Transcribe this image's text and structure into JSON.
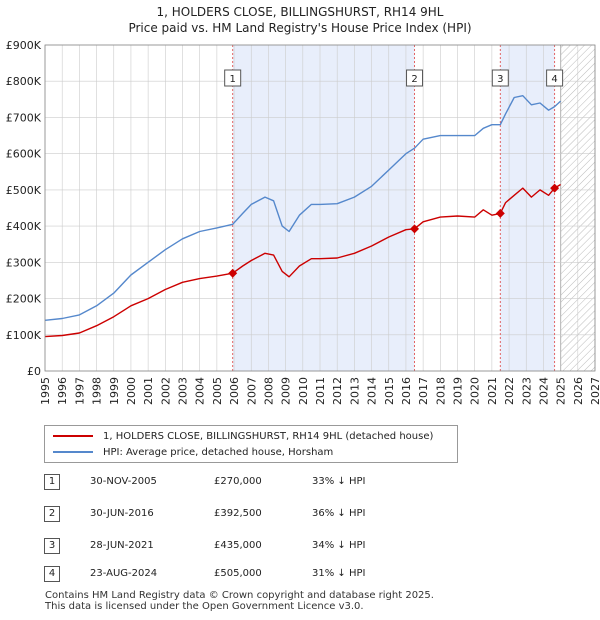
{
  "chart": {
    "title_line1": "1, HOLDERS CLOSE, BILLINGSHURST, RH14 9HL",
    "title_line2": "Price paid vs. HM Land Registry's House Price Index (HPI)"
  },
  "colors": {
    "property": "#cc0000",
    "hpi": "#5588cc",
    "shade": "#e8eefb",
    "marker_line": "#e05555",
    "grid": "#cccccc"
  },
  "legend": {
    "property_label": "1, HOLDERS CLOSE, BILLINGSHURST, RH14 9HL (detached house)",
    "hpi_label": "HPI: Average price, detached house, Horsham"
  },
  "sales": [
    {
      "id": "1",
      "date": "30-NOV-2005",
      "price": "£270,000",
      "hpi": "33% ↓ HPI"
    },
    {
      "id": "2",
      "date": "30-JUN-2016",
      "price": "£392,500",
      "hpi": "36% ↓ HPI"
    },
    {
      "id": "3",
      "date": "28-JUN-2021",
      "price": "£435,000",
      "hpi": "34% ↓ HPI"
    },
    {
      "id": "4",
      "date": "23-AUG-2024",
      "price": "£505,000",
      "hpi": "31% ↓ HPI"
    }
  ],
  "footer": {
    "line1": "Contains HM Land Registry data © Crown copyright and database right 2025.",
    "line2": "This data is licensed under the Open Government Licence v3.0."
  },
  "chart_data": {
    "type": "line",
    "title": "1, HOLDERS CLOSE, BILLINGSHURST, RH14 9HL — Price paid vs. HM Land Registry's House Price Index (HPI)",
    "xlabel": "",
    "ylabel": "",
    "xlim": [
      1995,
      2027
    ],
    "ylim": [
      0,
      900000
    ],
    "x_ticks": [
      1995,
      1996,
      1997,
      1998,
      1999,
      2000,
      2001,
      2002,
      2003,
      2004,
      2005,
      2006,
      2007,
      2008,
      2009,
      2010,
      2011,
      2012,
      2013,
      2014,
      2015,
      2016,
      2017,
      2018,
      2019,
      2020,
      2021,
      2022,
      2023,
      2024,
      2025,
      2026,
      2027
    ],
    "y_ticks": [
      {
        "value": 0,
        "label": "£0"
      },
      {
        "value": 100000,
        "label": "£100K"
      },
      {
        "value": 200000,
        "label": "£200K"
      },
      {
        "value": 300000,
        "label": "£300K"
      },
      {
        "value": 400000,
        "label": "£400K"
      },
      {
        "value": 500000,
        "label": "£500K"
      },
      {
        "value": 600000,
        "label": "£600K"
      },
      {
        "value": 700000,
        "label": "£700K"
      },
      {
        "value": 800000,
        "label": "£800K"
      },
      {
        "value": 900000,
        "label": "£900K"
      }
    ],
    "grid": true,
    "shaded_ranges": [
      [
        2005.92,
        2016.5
      ],
      [
        2021.49,
        2024.65
      ]
    ],
    "future_hatch_from": 2025.0,
    "series": [
      {
        "name": "1, HOLDERS CLOSE, BILLINGSHURST, RH14 9HL (detached house)",
        "color": "#cc0000",
        "x": [
          1995.0,
          1996.0,
          1997.0,
          1998.0,
          1999.0,
          2000.0,
          2001.0,
          2002.0,
          2003.0,
          2004.0,
          2005.0,
          2005.92,
          2006.5,
          2007.0,
          2007.8,
          2008.3,
          2008.8,
          2009.2,
          2009.8,
          2010.5,
          2011.0,
          2012.0,
          2013.0,
          2014.0,
          2015.0,
          2016.0,
          2016.5,
          2017.0,
          2018.0,
          2019.0,
          2020.0,
          2020.5,
          2021.0,
          2021.49,
          2021.8,
          2022.3,
          2022.8,
          2023.3,
          2023.8,
          2024.3,
          2024.65,
          2025.0
        ],
        "y": [
          95000,
          98000,
          105000,
          125000,
          150000,
          180000,
          200000,
          225000,
          245000,
          255000,
          262000,
          270000,
          290000,
          305000,
          325000,
          320000,
          275000,
          260000,
          290000,
          310000,
          310000,
          312000,
          325000,
          345000,
          370000,
          390000,
          392500,
          412000,
          425000,
          428000,
          425000,
          445000,
          430000,
          435000,
          465000,
          485000,
          505000,
          480000,
          500000,
          485000,
          505000,
          515000
        ]
      },
      {
        "name": "HPI: Average price, detached house, Horsham",
        "color": "#5588cc",
        "x": [
          1995.0,
          1996.0,
          1997.0,
          1998.0,
          1999.0,
          2000.0,
          2001.0,
          2002.0,
          2003.0,
          2004.0,
          2005.0,
          2005.92,
          2006.5,
          2007.0,
          2007.8,
          2008.3,
          2008.8,
          2009.2,
          2009.8,
          2010.5,
          2011.0,
          2012.0,
          2013.0,
          2014.0,
          2015.0,
          2016.0,
          2016.5,
          2017.0,
          2018.0,
          2019.0,
          2020.0,
          2020.5,
          2021.0,
          2021.49,
          2021.8,
          2022.3,
          2022.8,
          2023.3,
          2023.8,
          2024.3,
          2024.65,
          2025.0
        ],
        "y": [
          140000,
          145000,
          155000,
          180000,
          215000,
          265000,
          300000,
          335000,
          365000,
          385000,
          395000,
          405000,
          435000,
          460000,
          480000,
          470000,
          400000,
          385000,
          430000,
          460000,
          460000,
          462000,
          480000,
          510000,
          555000,
          600000,
          615000,
          640000,
          650000,
          650000,
          650000,
          670000,
          680000,
          680000,
          710000,
          755000,
          760000,
          735000,
          740000,
          720000,
          730000,
          745000
        ]
      }
    ],
    "sale_markers": [
      {
        "label": "1",
        "x": 2005.92,
        "y": 270000
      },
      {
        "label": "2",
        "x": 2016.5,
        "y": 392500
      },
      {
        "label": "3",
        "x": 2021.49,
        "y": 435000
      },
      {
        "label": "4",
        "x": 2024.65,
        "y": 505000
      }
    ]
  }
}
